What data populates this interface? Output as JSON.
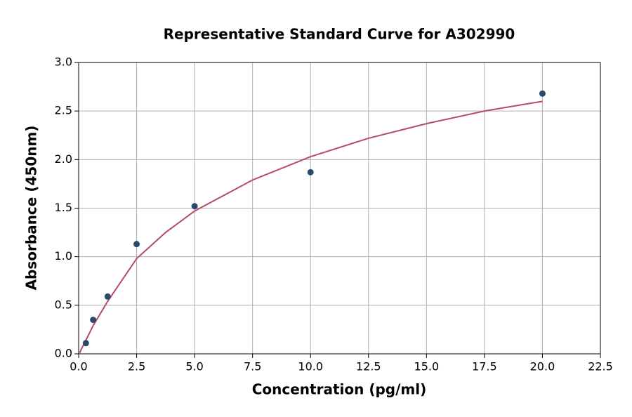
{
  "chart_data": {
    "type": "scatter",
    "title": "Representative Standard Curve for A302990",
    "x_label": "Concentration (pg/ml)",
    "y_label": "Absorbance (450nm)",
    "xlim": [
      0,
      22.5
    ],
    "ylim": [
      0,
      3
    ],
    "xticks": [
      {
        "value": 0,
        "label": "0.0"
      },
      2.5,
      {
        "value": 5,
        "label": "5.0"
      },
      7.5,
      {
        "value": 10,
        "label": "10.0"
      },
      12.5,
      {
        "value": 15,
        "label": "15.0"
      },
      17.5,
      {
        "value": 20,
        "label": "20.0"
      },
      22.5
    ],
    "yticks": [
      {
        "value": 0,
        "label": "0.0"
      },
      0.5,
      {
        "value": 1,
        "label": "1.0"
      },
      1.5,
      {
        "value": 2,
        "label": "2.0"
      },
      2.5,
      {
        "value": 3,
        "label": "3.0"
      }
    ],
    "grid": true,
    "series": [
      {
        "type": "scatter",
        "color": "#2b4a6f",
        "x": [
          0.3125,
          0.625,
          1.25,
          2.5,
          5,
          10,
          20
        ],
        "values": [
          0.11,
          0.35,
          0.59,
          1.13,
          1.52,
          1.87,
          2.68
        ]
      },
      {
        "type": "line",
        "color": "#b44a6c",
        "x": [
          0.05,
          0.1,
          0.3125,
          0.625,
          1.25,
          2.5,
          3.75,
          5,
          7.5,
          10,
          12.5,
          15,
          17.5,
          20
        ],
        "values": [
          0.01,
          0.04,
          0.14,
          0.29,
          0.54,
          0.98,
          1.25,
          1.47,
          1.79,
          2.03,
          2.22,
          2.37,
          2.5,
          2.6
        ]
      }
    ]
  }
}
